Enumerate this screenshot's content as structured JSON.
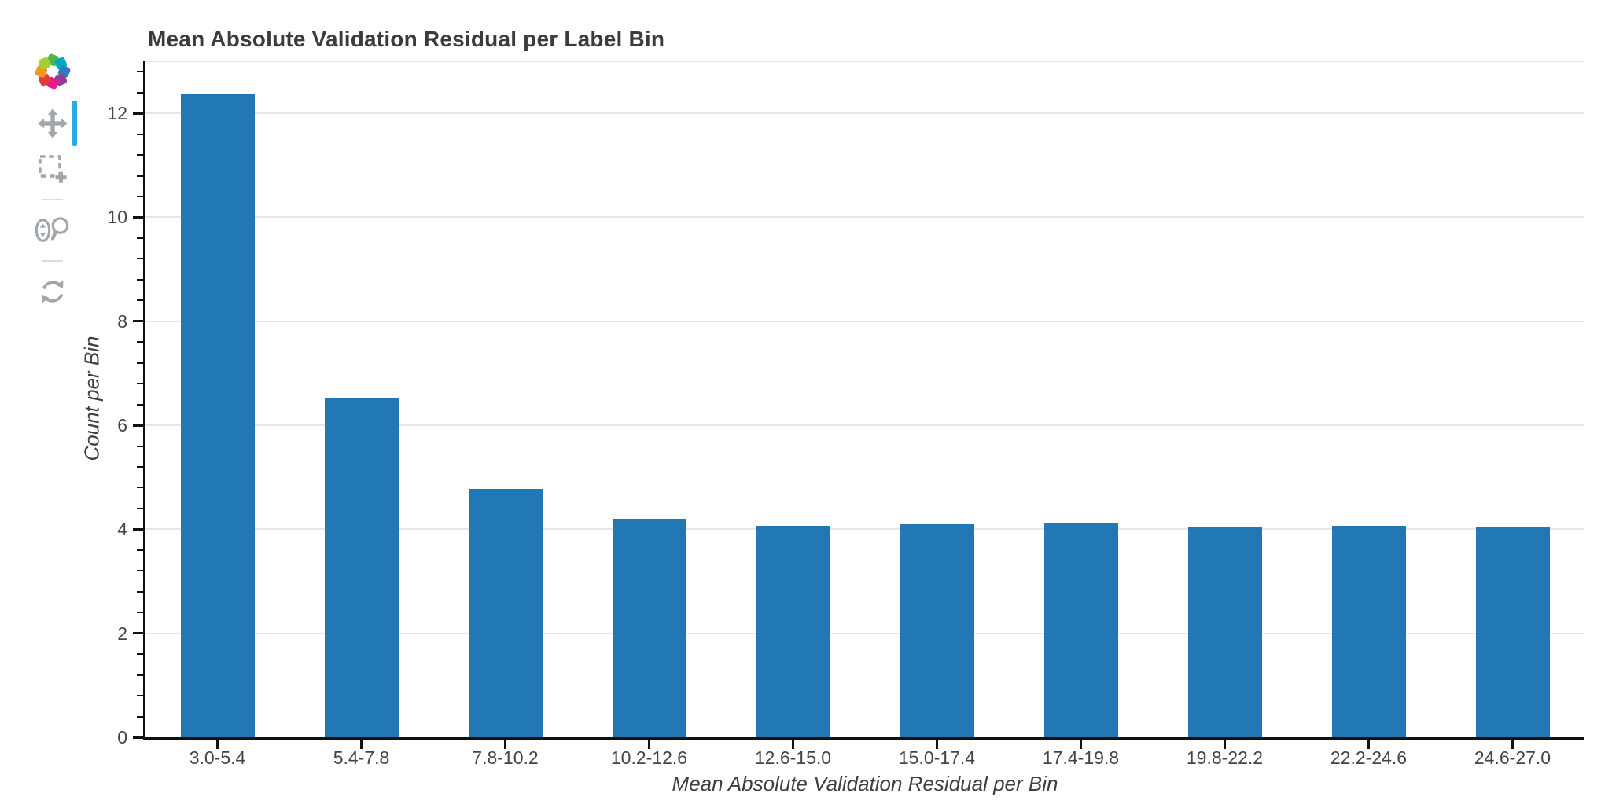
{
  "toolbar": {
    "active_color": "#29abe2",
    "icon_color": "#a1a6aa",
    "logo_colors": [
      "#4eb748",
      "#00a9c1",
      "#2d7cbd",
      "#8f3f97",
      "#ec168c",
      "#e0393e",
      "#f7941e",
      "#a6ce39"
    ],
    "tools": [
      {
        "id": "pan",
        "icon": "pan-icon",
        "active": true
      },
      {
        "id": "box-zoom",
        "icon": "box-zoom-icon",
        "active": false
      },
      {
        "id": "wheel-zoom",
        "icon": "wheel-zoom-icon",
        "active": false
      },
      {
        "id": "reset",
        "icon": "reset-icon",
        "active": false
      }
    ]
  },
  "chart_data": {
    "type": "bar",
    "title": "Mean Absolute Validation Residual per Label Bin",
    "xlabel": "Mean Absolute Validation Residual per Bin",
    "ylabel": "Count per Bin",
    "categories": [
      "3.0-5.4",
      "5.4-7.8",
      "7.8-10.2",
      "10.2-12.6",
      "12.6-15.0",
      "15.0-17.4",
      "17.4-19.8",
      "19.8-22.2",
      "22.2-24.6",
      "24.6-27.0"
    ],
    "values": [
      12.37,
      6.53,
      4.77,
      4.2,
      4.06,
      4.1,
      4.11,
      4.03,
      4.06,
      4.05
    ],
    "ylim": [
      0,
      13
    ],
    "yticks": [
      0,
      2,
      4,
      6,
      8,
      10,
      12
    ],
    "y_minor_step": 0.4,
    "grid": true,
    "legend": "none",
    "bar_color": "#2277b5",
    "grid_color": "#e6e6e6",
    "axis_line_color": "#111111",
    "tick_label_color": "#444444",
    "title_color": "#3b3b3b"
  }
}
